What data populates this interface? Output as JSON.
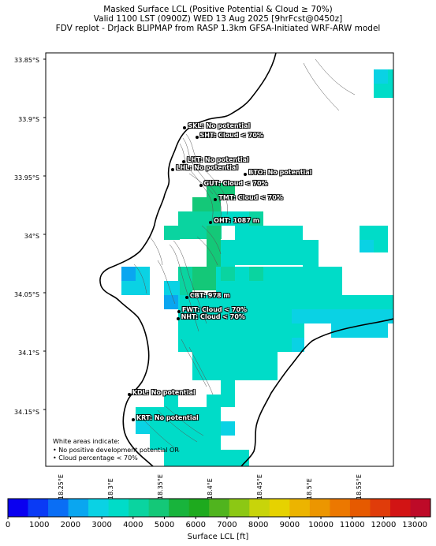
{
  "header": {
    "title_line1": "Masked Surface LCL (Positive Potential & Cloud ≥ 70%)",
    "title_line2": "Valid 1100 LST (0900Z) WED 13 Aug 2025 [9hrFcst@0450z]",
    "title_line3": "FDV replot - DrJack BLIPMAP from RASP 1.3km GFSA-Initiated WRF-ARW model"
  },
  "map": {
    "lon_range": [
      18.234,
      18.584
    ],
    "lat_range": [
      -34.196,
      -33.843
    ],
    "lat_ticks": [
      {
        "value": -33.85,
        "label": "33.85°S"
      },
      {
        "value": -33.9,
        "label": "33.9°S"
      },
      {
        "value": -33.95,
        "label": "33.95°S"
      },
      {
        "value": -34.0,
        "label": "34°S"
      },
      {
        "value": -34.05,
        "label": "34.05°S"
      },
      {
        "value": -34.1,
        "label": "34.1°S"
      },
      {
        "value": -34.15,
        "label": "34.15°S"
      }
    ],
    "lon_ticks": [
      {
        "value": 18.25,
        "label": "18.25°E"
      },
      {
        "value": 18.3,
        "label": "18.3°E"
      },
      {
        "value": 18.35,
        "label": "18.35°E"
      },
      {
        "value": 18.4,
        "label": "18.4°E"
      },
      {
        "value": 18.45,
        "label": "18.45°E"
      },
      {
        "value": 18.5,
        "label": "18.5°E"
      },
      {
        "value": 18.55,
        "label": "18.55°E"
      }
    ],
    "stations": [
      {
        "code": "SKL",
        "label": "SKL: No potential",
        "lon": 18.374,
        "lat": -33.907
      },
      {
        "code": "SHT",
        "label": "SHT: Cloud < 70%",
        "lon": 18.386,
        "lat": -33.915
      },
      {
        "code": "LHT",
        "label": "LHT: No potential",
        "lon": 18.373,
        "lat": -33.936
      },
      {
        "code": "LHL",
        "label": "LHL: No potential",
        "lon": 18.362,
        "lat": -33.943
      },
      {
        "code": "BTO",
        "label": "BTO: No potential",
        "lon": 18.435,
        "lat": -33.947
      },
      {
        "code": "GUT",
        "label": "GUT: Cloud < 70%",
        "lon": 18.39,
        "lat": -33.956
      },
      {
        "code": "TMT",
        "label": "TMT: Cloud < 70%",
        "lon": 18.405,
        "lat": -33.968
      },
      {
        "code": "OHT",
        "label": "OHT: 1087 m",
        "lon": 18.4,
        "lat": -33.988
      },
      {
        "code": "CBT",
        "label": "CBT: 978 m",
        "lon": 18.376,
        "lat": -34.052
      },
      {
        "code": "FWT",
        "label": "FWT: Cloud < 70%",
        "lon": 18.368,
        "lat": -34.064
      },
      {
        "code": "NHT",
        "label": "NHT: Cloud < 70%",
        "lon": 18.367,
        "lat": -34.07
      },
      {
        "code": "KDL",
        "label": "KDL: No potential",
        "lon": 18.318,
        "lat": -34.135
      },
      {
        "code": "KRT",
        "label": "KRT: No potential",
        "lon": 18.322,
        "lat": -34.156
      }
    ],
    "note_lines": [
      "White areas indicate:",
      "• No positive development potential OR",
      "• Cloud percentage < 70%"
    ]
  },
  "colorbar": {
    "label": "Surface LCL [ft]",
    "min": 0,
    "max": 13500,
    "ticks": [
      0,
      1000,
      2000,
      3000,
      4000,
      5000,
      6000,
      7000,
      8000,
      9000,
      10000,
      11000,
      12000,
      13000
    ],
    "colors": [
      "#0a00f0",
      "#0a3af5",
      "#0a6ef5",
      "#0aa6f0",
      "#0ad2e4",
      "#00dcc8",
      "#0ad4a0",
      "#14c878",
      "#18b43c",
      "#1eaa1e",
      "#50b41e",
      "#8cc814",
      "#c8d40a",
      "#e6d200",
      "#ecb400",
      "#ec9600",
      "#ec7800",
      "#e65a00",
      "#e03c0a",
      "#d21414",
      "#be0a28"
    ]
  }
}
